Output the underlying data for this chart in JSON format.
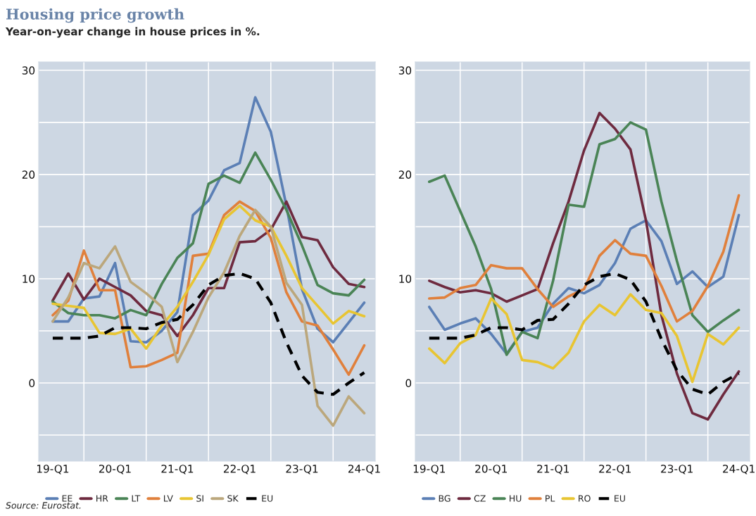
{
  "chart_data": [
    {
      "type": "line",
      "title": "Housing price growth",
      "subtitle": "Year-on-year change in house prices in %.",
      "annotations": [
        "Source: Eurostat."
      ],
      "categories": [
        "19-Q1",
        null,
        null,
        null,
        "20-Q1",
        null,
        null,
        null,
        "21-Q1",
        null,
        null,
        null,
        "22-Q1",
        null,
        null,
        null,
        "23-Q1",
        null,
        null,
        null,
        "24-Q1"
      ],
      "ylim": [
        -7.5,
        30.8
      ],
      "yticks": [
        {
          "value": -5,
          "label": null
        },
        0,
        {
          "value": 5,
          "label": null
        },
        10,
        {
          "value": 15,
          "label": null
        },
        20,
        {
          "value": 25,
          "label": null
        },
        30
      ],
      "grid": true,
      "legend": "bottom",
      "series": [
        {
          "name": "EE",
          "color": "#5b7fb5",
          "values": [
            5.9,
            5.9,
            8.1,
            8.3,
            11.5,
            4.0,
            3.9,
            5.0,
            6.8,
            16.1,
            17.5,
            20.4,
            21.1,
            27.4,
            24.1,
            17.0,
            9.0,
            5.2,
            3.9,
            5.8,
            7.7
          ]
        },
        {
          "name": "HR",
          "color": "#6e2a3f",
          "values": [
            7.9,
            10.5,
            8.0,
            10.0,
            9.2,
            8.4,
            6.9,
            6.5,
            4.5,
            6.5,
            9.1,
            9.1,
            13.5,
            13.6,
            14.7,
            17.4,
            14.0,
            13.7,
            11.1,
            9.5,
            9.2
          ]
        },
        {
          "name": "LT",
          "color": "#4a8456",
          "values": [
            7.8,
            6.7,
            6.5,
            6.5,
            6.2,
            7.0,
            6.5,
            9.5,
            12.0,
            13.4,
            19.1,
            19.9,
            19.2,
            22.1,
            19.5,
            16.6,
            13.2,
            9.4,
            8.6,
            8.4,
            9.9
          ]
        },
        {
          "name": "LV",
          "color": "#e0803c",
          "values": [
            6.5,
            7.9,
            12.7,
            8.9,
            8.9,
            1.5,
            1.6,
            2.2,
            2.9,
            12.2,
            12.4,
            16.1,
            17.4,
            16.5,
            13.9,
            8.7,
            5.9,
            5.5,
            3.2,
            0.8,
            3.6
          ]
        },
        {
          "name": "SI",
          "color": "#e8c532",
          "values": [
            7.6,
            7.4,
            7.2,
            4.8,
            4.7,
            5.2,
            3.3,
            5.5,
            7.3,
            9.7,
            12.3,
            15.7,
            17.0,
            15.6,
            15.0,
            12.2,
            9.1,
            7.4,
            5.7,
            6.9,
            6.4
          ]
        },
        {
          "name": "SK",
          "color": "#bba77c",
          "values": [
            5.9,
            8.2,
            11.5,
            11.0,
            13.1,
            9.7,
            8.6,
            7.3,
            2.0,
            4.9,
            8.2,
            10.6,
            14.1,
            16.6,
            15.0,
            9.6,
            7.5,
            -2.2,
            -4.1,
            -1.3,
            -2.9
          ]
        },
        {
          "name": "EU",
          "color": "#000000",
          "line_style": "dashed",
          "values": [
            4.3,
            4.3,
            4.3,
            4.5,
            5.3,
            5.3,
            5.2,
            5.8,
            6.1,
            7.5,
            9.4,
            10.3,
            10.5,
            10.0,
            7.7,
            3.9,
            0.7,
            -0.9,
            -1.1,
            0.0,
            1.0
          ]
        }
      ]
    },
    {
      "type": "line",
      "categories": [
        "19-Q1",
        null,
        null,
        null,
        "20-Q1",
        null,
        null,
        null,
        "21-Q1",
        null,
        null,
        null,
        "22-Q1",
        null,
        null,
        null,
        "23-Q1",
        null,
        null,
        null,
        "24-Q1"
      ],
      "ylim": [
        -7.5,
        30.8
      ],
      "yticks": [
        {
          "value": -5,
          "label": null
        },
        0,
        {
          "value": 5,
          "label": null
        },
        10,
        {
          "value": 15,
          "label": null
        },
        20,
        {
          "value": 25,
          "label": null
        },
        30
      ],
      "grid": true,
      "legend": "bottom",
      "series": [
        {
          "name": "BG",
          "color": "#5b7fb5",
          "values": [
            7.3,
            5.1,
            5.7,
            6.2,
            4.7,
            2.8,
            4.9,
            5.3,
            7.6,
            9.1,
            8.6,
            9.4,
            11.5,
            14.8,
            15.6,
            13.6,
            9.5,
            10.7,
            9.2,
            10.2,
            16.1
          ]
        },
        {
          "name": "CZ",
          "color": "#6e2a3f",
          "values": [
            9.8,
            9.2,
            8.7,
            8.9,
            8.6,
            7.8,
            8.4,
            9.0,
            13.4,
            17.4,
            22.3,
            25.9,
            24.4,
            22.4,
            15.6,
            6.5,
            0.9,
            -2.9,
            -3.5,
            -1.1,
            1.1
          ]
        },
        {
          "name": "HU",
          "color": "#4a8456",
          "values": [
            19.3,
            19.9,
            16.5,
            13.1,
            9.0,
            2.7,
            4.9,
            4.3,
            9.8,
            17.1,
            16.9,
            22.9,
            23.4,
            25.0,
            24.3,
            17.4,
            11.7,
            6.5,
            4.9,
            6.0,
            7.0
          ]
        },
        {
          "name": "PL",
          "color": "#e0803c",
          "values": [
            8.1,
            8.2,
            9.1,
            9.4,
            11.3,
            11.0,
            11.0,
            9.0,
            7.3,
            8.3,
            9.0,
            12.2,
            13.7,
            12.4,
            12.2,
            9.3,
            5.9,
            6.9,
            9.3,
            12.6,
            18.0
          ]
        },
        {
          "name": "RO",
          "color": "#e8c532",
          "values": [
            3.3,
            1.9,
            3.8,
            4.6,
            8.1,
            6.6,
            2.2,
            2.0,
            1.4,
            2.9,
            5.9,
            7.5,
            6.5,
            8.5,
            7.0,
            6.7,
            4.5,
            0.1,
            4.7,
            3.7,
            5.3
          ]
        },
        {
          "name": "EU",
          "color": "#000000",
          "line_style": "dashed",
          "values": [
            4.3,
            4.3,
            4.3,
            4.6,
            5.3,
            5.3,
            5.1,
            6.0,
            6.1,
            7.6,
            9.4,
            10.2,
            10.5,
            9.9,
            7.8,
            4.2,
            1.2,
            -0.6,
            -1.1,
            0.1,
            0.9
          ]
        }
      ]
    }
  ]
}
